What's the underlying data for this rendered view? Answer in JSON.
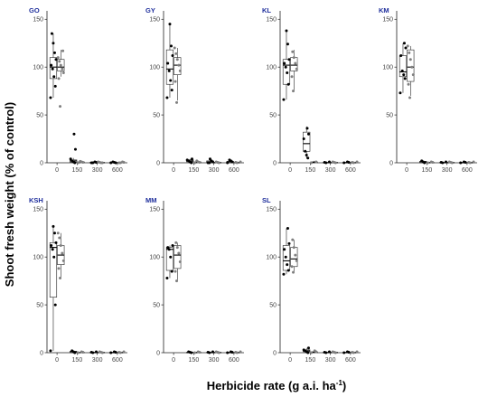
{
  "chart_data": {
    "type": "boxplot",
    "xlabel": "Herbicide rate (g a.i. ha",
    "xlabel_superscript": "-1",
    "xlabel_suffix": ")",
    "ylabel": "Shoot fresh weight (% of control)",
    "ylim": [
      0,
      155
    ],
    "y_ticks": [
      "0",
      "50",
      "100",
      "150"
    ],
    "categories": [
      "0",
      "150",
      "300",
      "600"
    ],
    "series_colors": [
      "#000000",
      "#7f7f7f"
    ],
    "panels": [
      {
        "label": "GO",
        "boxes": [
          {
            "category": "0",
            "series": 0,
            "min": 68,
            "q1": 88,
            "median": 100,
            "q3": 110,
            "max": 135,
            "points": [
              68,
              80,
              90,
              98,
              102,
              108,
              115,
              125,
              135
            ]
          },
          {
            "category": "0",
            "series": 1,
            "min": 90,
            "q1": 96,
            "median": 100,
            "q3": 108,
            "max": 118,
            "points": [
              59,
              88,
              94,
              98,
              102,
              106,
              110,
              117
            ]
          },
          {
            "category": "150",
            "series": 0,
            "min": 0,
            "q1": 0.5,
            "median": 2,
            "q3": 3,
            "max": 5,
            "points": [
              0,
              1,
              2,
              4,
              14,
              30
            ]
          },
          {
            "category": "150",
            "series": 1,
            "min": 0,
            "q1": 0,
            "median": 0.5,
            "q3": 1,
            "max": 2,
            "points": [
              0,
              0.5,
              1,
              1.5
            ]
          },
          {
            "category": "300",
            "series": 0,
            "min": 0,
            "q1": 0,
            "median": 0,
            "q3": 0.5,
            "max": 1,
            "points": [
              0,
              0,
              0.5,
              1
            ]
          },
          {
            "category": "300",
            "series": 1,
            "min": 0,
            "q1": 0,
            "median": 0,
            "q3": 0.5,
            "max": 1,
            "points": [
              0,
              0,
              0.5,
              1
            ]
          },
          {
            "category": "600",
            "series": 0,
            "min": 0,
            "q1": 0,
            "median": 0,
            "q3": 0.5,
            "max": 1,
            "points": [
              0,
              0,
              0.5,
              1
            ]
          },
          {
            "category": "600",
            "series": 1,
            "min": 0,
            "q1": 0,
            "median": 0,
            "q3": 0.5,
            "max": 1,
            "points": [
              0,
              0,
              0.5,
              1
            ]
          }
        ]
      },
      {
        "label": "GY",
        "boxes": [
          {
            "category": "0",
            "series": 0,
            "min": 68,
            "q1": 82,
            "median": 98,
            "q3": 118,
            "max": 145,
            "points": [
              68,
              76,
              86,
              96,
              104,
              112,
              122,
              145
            ]
          },
          {
            "category": "0",
            "series": 1,
            "min": 65,
            "q1": 92,
            "median": 102,
            "q3": 110,
            "max": 120,
            "points": [
              63,
              85,
              96,
              102,
              108,
              114,
              120
            ]
          },
          {
            "category": "150",
            "series": 0,
            "min": 0,
            "q1": 1,
            "median": 2,
            "q3": 3,
            "max": 4,
            "points": [
              0,
              1,
              2,
              3,
              4
            ]
          },
          {
            "category": "150",
            "series": 1,
            "min": 0,
            "q1": 0,
            "median": 0.5,
            "q3": 1,
            "max": 2,
            "points": [
              0,
              0.5,
              1,
              2
            ]
          },
          {
            "category": "300",
            "series": 0,
            "min": 0,
            "q1": 0,
            "median": 1,
            "q3": 2,
            "max": 5,
            "points": [
              0,
              0,
              1,
              2,
              4
            ]
          },
          {
            "category": "300",
            "series": 1,
            "min": 0,
            "q1": 0,
            "median": 0,
            "q3": 0.5,
            "max": 1,
            "points": [
              0,
              0.5,
              1
            ]
          },
          {
            "category": "600",
            "series": 0,
            "min": 0,
            "q1": 0,
            "median": 1,
            "q3": 1.5,
            "max": 3,
            "points": [
              0,
              1,
              2,
              3
            ]
          },
          {
            "category": "600",
            "series": 1,
            "min": 0,
            "q1": 0,
            "median": 0,
            "q3": 0.5,
            "max": 1,
            "points": [
              0,
              0.5,
              1
            ]
          }
        ]
      },
      {
        "label": "KL",
        "boxes": [
          {
            "category": "0",
            "series": 0,
            "min": 66,
            "q1": 82,
            "median": 102,
            "q3": 108,
            "max": 138,
            "points": [
              66,
              82,
              94,
              100,
              104,
              108,
              124,
              138
            ]
          },
          {
            "category": "0",
            "series": 1,
            "min": 75,
            "q1": 96,
            "median": 102,
            "q3": 110,
            "max": 118,
            "points": [
              75,
              90,
              98,
              104,
              110,
              116
            ]
          },
          {
            "category": "150",
            "series": 0,
            "min": 5,
            "q1": 12,
            "median": 20,
            "q3": 32,
            "max": 38,
            "points": [
              5,
              8,
              12,
              25,
              30,
              36
            ]
          },
          {
            "category": "150",
            "series": 1,
            "min": 0,
            "q1": 0,
            "median": 0.5,
            "q3": 1,
            "max": 2,
            "points": [
              0,
              1
            ]
          },
          {
            "category": "300",
            "series": 0,
            "min": 0,
            "q1": 0,
            "median": 0,
            "q3": 0.5,
            "max": 1,
            "points": [
              0,
              0.5,
              1
            ]
          },
          {
            "category": "300",
            "series": 1,
            "min": 0,
            "q1": 0,
            "median": 0,
            "q3": 0.5,
            "max": 1,
            "points": [
              0,
              0.5,
              1
            ]
          },
          {
            "category": "600",
            "series": 0,
            "min": 0,
            "q1": 0,
            "median": 0,
            "q3": 0.5,
            "max": 1,
            "points": [
              0,
              0.5,
              1
            ]
          },
          {
            "category": "600",
            "series": 1,
            "min": 0,
            "q1": 0,
            "median": 0,
            "q3": 0.5,
            "max": 1,
            "points": [
              0,
              0.5,
              1
            ]
          }
        ]
      },
      {
        "label": "KM",
        "boxes": [
          {
            "category": "0",
            "series": 0,
            "min": 73,
            "q1": 90,
            "median": 95,
            "q3": 112,
            "max": 125,
            "points": [
              73,
              88,
              92,
              96,
              112,
              120,
              125
            ]
          },
          {
            "category": "0",
            "series": 1,
            "min": 70,
            "q1": 85,
            "median": 100,
            "q3": 118,
            "max": 122,
            "points": [
              68,
              82,
              92,
              100,
              108,
              115,
              122
            ]
          },
          {
            "category": "150",
            "series": 0,
            "min": 0,
            "q1": 0,
            "median": 1,
            "q3": 1.5,
            "max": 2,
            "points": [
              0,
              1,
              2
            ]
          },
          {
            "category": "150",
            "series": 1,
            "min": 0,
            "q1": 0,
            "median": 0,
            "q3": 0.5,
            "max": 1,
            "points": [
              0,
              0.5,
              1
            ]
          },
          {
            "category": "300",
            "series": 0,
            "min": 0,
            "q1": 0,
            "median": 0,
            "q3": 0.5,
            "max": 1,
            "points": [
              0,
              0.5,
              1
            ]
          },
          {
            "category": "300",
            "series": 1,
            "min": 0,
            "q1": 0,
            "median": 0,
            "q3": 0.5,
            "max": 1,
            "points": [
              0,
              0.5,
              1
            ]
          },
          {
            "category": "600",
            "series": 0,
            "min": 0,
            "q1": 0,
            "median": 0,
            "q3": 0.5,
            "max": 1,
            "points": [
              0,
              0.5,
              1
            ]
          },
          {
            "category": "600",
            "series": 1,
            "min": 0,
            "q1": 0,
            "median": 0,
            "q3": 0.5,
            "max": 1,
            "points": [
              0,
              0.5,
              1
            ]
          }
        ]
      },
      {
        "label": "KSH",
        "boxes": [
          {
            "category": "0",
            "series": 0,
            "min": 2,
            "q1": 58,
            "median": 110,
            "q3": 115,
            "max": 132,
            "points": [
              2,
              50,
              100,
              108,
              112,
              115,
              125,
              132
            ]
          },
          {
            "category": "0",
            "series": 1,
            "min": 78,
            "q1": 92,
            "median": 102,
            "q3": 112,
            "max": 125,
            "points": [
              78,
              88,
              96,
              104,
              112,
              120,
              125
            ]
          },
          {
            "category": "150",
            "series": 0,
            "min": 0,
            "q1": 0,
            "median": 1,
            "q3": 1.5,
            "max": 2,
            "points": [
              0,
              1,
              2
            ]
          },
          {
            "category": "150",
            "series": 1,
            "min": 0,
            "q1": 0,
            "median": 0,
            "q3": 0.5,
            "max": 1,
            "points": [
              0,
              0.5,
              1
            ]
          },
          {
            "category": "300",
            "series": 0,
            "min": 0,
            "q1": 0,
            "median": 0,
            "q3": 0.5,
            "max": 1,
            "points": [
              0,
              0.5,
              1
            ]
          },
          {
            "category": "300",
            "series": 1,
            "min": 0,
            "q1": 0,
            "median": 0,
            "q3": 0.5,
            "max": 1,
            "points": [
              0,
              0.5,
              1
            ]
          },
          {
            "category": "600",
            "series": 0,
            "min": 0,
            "q1": 0,
            "median": 0,
            "q3": 0.5,
            "max": 1,
            "points": [
              0,
              0.5,
              1
            ]
          },
          {
            "category": "600",
            "series": 1,
            "min": 0,
            "q1": 0,
            "median": 0,
            "q3": 0.5,
            "max": 1,
            "points": [
              0,
              0.5,
              1
            ]
          }
        ]
      },
      {
        "label": "MM",
        "boxes": [
          {
            "category": "0",
            "series": 0,
            "min": 78,
            "q1": 86,
            "median": 108,
            "q3": 110,
            "max": 112,
            "points": [
              78,
              85,
              100,
              108,
              110,
              112
            ]
          },
          {
            "category": "0",
            "series": 1,
            "min": 75,
            "q1": 88,
            "median": 102,
            "q3": 112,
            "max": 115,
            "points": [
              75,
              85,
              95,
              104,
              110,
              115
            ]
          },
          {
            "category": "150",
            "series": 0,
            "min": 0,
            "q1": 0,
            "median": 0,
            "q3": 0.5,
            "max": 1,
            "points": [
              0,
              0.5,
              1
            ]
          },
          {
            "category": "150",
            "series": 1,
            "min": 0,
            "q1": 0,
            "median": 0,
            "q3": 0.5,
            "max": 1,
            "points": [
              0,
              0.5,
              1
            ]
          },
          {
            "category": "300",
            "series": 0,
            "min": 0,
            "q1": 0,
            "median": 0,
            "q3": 0.5,
            "max": 1,
            "points": [
              0,
              0.5,
              1
            ]
          },
          {
            "category": "300",
            "series": 1,
            "min": 0,
            "q1": 0,
            "median": 0,
            "q3": 0.5,
            "max": 1,
            "points": [
              0,
              0.5,
              1
            ]
          },
          {
            "category": "600",
            "series": 0,
            "min": 0,
            "q1": 0,
            "median": 0,
            "q3": 0.5,
            "max": 1,
            "points": [
              0,
              0.5,
              1
            ]
          },
          {
            "category": "600",
            "series": 1,
            "min": 0,
            "q1": 0,
            "median": 0,
            "q3": 0.5,
            "max": 1,
            "points": [
              0,
              0.5,
              1
            ]
          }
        ]
      },
      {
        "label": "SL",
        "boxes": [
          {
            "category": "0",
            "series": 0,
            "min": 82,
            "q1": 86,
            "median": 96,
            "q3": 112,
            "max": 130,
            "points": [
              82,
              86,
              92,
              100,
              108,
              114,
              130
            ]
          },
          {
            "category": "0",
            "series": 1,
            "min": 84,
            "q1": 90,
            "median": 98,
            "q3": 110,
            "max": 118,
            "points": [
              84,
              90,
              96,
              102,
              110,
              118
            ]
          },
          {
            "category": "150",
            "series": 0,
            "min": 0,
            "q1": 1,
            "median": 2,
            "q3": 3,
            "max": 5,
            "points": [
              0,
              1,
              2,
              3,
              5
            ]
          },
          {
            "category": "150",
            "series": 1,
            "min": 0,
            "q1": 0,
            "median": 0.5,
            "q3": 1,
            "max": 2,
            "points": [
              0,
              1,
              2
            ]
          },
          {
            "category": "300",
            "series": 0,
            "min": 0,
            "q1": 0,
            "median": 0,
            "q3": 0.5,
            "max": 1,
            "points": [
              0,
              0.5,
              1
            ]
          },
          {
            "category": "300",
            "series": 1,
            "min": 0,
            "q1": 0,
            "median": 0,
            "q3": 0.5,
            "max": 1,
            "points": [
              0,
              0.5,
              1
            ]
          },
          {
            "category": "600",
            "series": 0,
            "min": 0,
            "q1": 0,
            "median": 0,
            "q3": 0.5,
            "max": 1,
            "points": [
              0,
              0.5,
              1
            ]
          },
          {
            "category": "600",
            "series": 1,
            "min": 0,
            "q1": 0,
            "median": 0,
            "q3": 0.5,
            "max": 1,
            "points": [
              0,
              0.5,
              1
            ]
          }
        ]
      }
    ]
  }
}
